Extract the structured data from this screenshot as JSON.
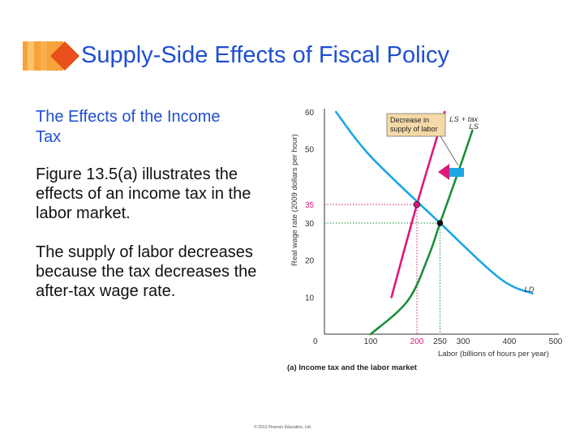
{
  "slide": {
    "title": "Supply-Side Effects of Fiscal Policy",
    "heading": "The Effects of the Income Tax",
    "paragraphs": [
      "Figure 13.5(a) illustrates the effects of an income tax in the labor market.",
      "The supply of labor decreases because the tax decreases the after-tax wage rate."
    ],
    "copyright": "© 2013 Pearson Education, Ltd."
  },
  "colors": {
    "title": "#1f4fd1",
    "ornament_orange": "#f7a23a",
    "ornament_red": "#e8501c",
    "ld_curve": "#1ba6e6",
    "ls_curve": "#1a8f3a",
    "ls_tax_curve": "#e0187a",
    "arrow_magenta": "#e0187a",
    "arrow_blue": "#1ba6e6",
    "callout_fill": "#f5d9a6"
  },
  "chart_data": {
    "type": "line",
    "caption": "(a) Income tax and the labor market",
    "xlabel": "Labor (billions of hours per year)",
    "ylabel": "Real wage rate (2009 dollars per hour)",
    "xlim": [
      0,
      500
    ],
    "ylim": [
      0,
      60
    ],
    "x_ticks": [
      "0",
      "100",
      "200",
      "250",
      "300",
      "400",
      "500"
    ],
    "y_ticks": [
      "10",
      "20",
      "30",
      "35",
      "50",
      "60"
    ],
    "highlight_ticks": {
      "x": "200",
      "y": "35"
    },
    "series": [
      {
        "name": "LS",
        "color_key": "ls_curve",
        "points": [
          [
            100,
            0
          ],
          [
            180,
            9
          ],
          [
            225,
            21
          ],
          [
            250,
            30
          ],
          [
            290,
            44
          ],
          [
            320,
            55
          ]
        ]
      },
      {
        "name": "LS + tax",
        "color_key": "ls_tax_curve",
        "points": [
          [
            145,
            10
          ],
          [
            200,
            35
          ],
          [
            260,
            60
          ]
        ]
      },
      {
        "name": "LD",
        "color_key": "ld_curve",
        "points": [
          [
            25,
            60
          ],
          [
            100,
            48
          ],
          [
            250,
            30
          ],
          [
            380,
            15
          ],
          [
            450,
            11
          ]
        ]
      }
    ],
    "equilibria": [
      {
        "x": 250,
        "y": 30,
        "color_key": "ls_curve"
      },
      {
        "x": 200,
        "y": 35,
        "color_key": "ls_tax_curve"
      }
    ],
    "annotations": [
      {
        "text": "Decrease in supply of labor"
      }
    ],
    "grid": false,
    "legend": "none"
  }
}
